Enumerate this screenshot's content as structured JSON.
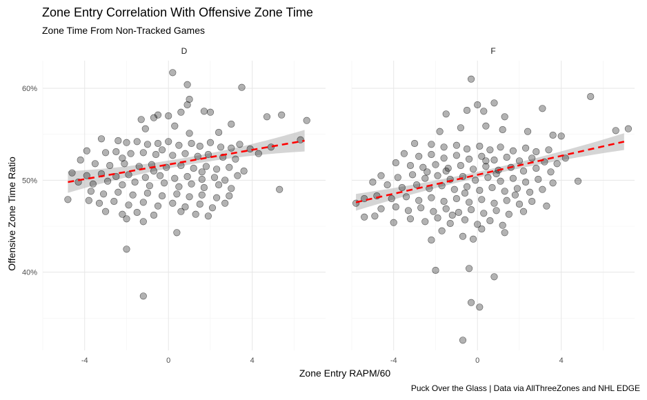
{
  "header": {
    "title": "Zone Entry Correlation With Offensive Zone Time",
    "subtitle": "Zone Time From Non-Tracked Games"
  },
  "footer": {
    "caption": "Puck Over the Glass   |   Data via AllThreeZones and NHL EDGE"
  },
  "chart_data": {
    "type": "scatter",
    "xlabel": "Zone Entry RAPM/60",
    "ylabel": "Offensive Zone Time Ratio",
    "xlim": [
      -6.0,
      7.5
    ],
    "ylim": [
      31.5,
      63.0
    ],
    "x_ticks": [
      -4,
      0,
      4
    ],
    "x_tick_labels": [
      "-4",
      "0",
      "4"
    ],
    "y_ticks": [
      40,
      50,
      60
    ],
    "y_tick_labels": [
      "40%",
      "50%",
      "60%"
    ],
    "grid": true,
    "point_color": "#000000",
    "point_alpha": 0.3,
    "trend_color": "#ff0000",
    "band_color": "#bebebe",
    "panels": [
      {
        "label": "D",
        "trend": {
          "x": [
            -4.8,
            6.5
          ],
          "y": [
            49.8,
            54.3
          ],
          "band": 0.9
        },
        "points": [
          [
            0.2,
            61.7
          ],
          [
            0.9,
            60.4
          ],
          [
            3.5,
            60.1
          ],
          [
            1.0,
            58.8
          ],
          [
            0.9,
            58.2
          ],
          [
            4.7,
            56.9
          ],
          [
            5.4,
            57.1
          ],
          [
            6.6,
            56.5
          ],
          [
            1.7,
            57.5
          ],
          [
            2.0,
            57.4
          ],
          [
            0.6,
            57.4
          ],
          [
            -0.5,
            57.1
          ],
          [
            -1.3,
            56.6
          ],
          [
            -0.7,
            56.8
          ],
          [
            0.0,
            57.0
          ],
          [
            3.0,
            56.1
          ],
          [
            -3.2,
            54.5
          ],
          [
            -2.4,
            54.3
          ],
          [
            -2.0,
            54.1
          ],
          [
            -1.5,
            54.2
          ],
          [
            -1.0,
            53.9
          ],
          [
            -0.5,
            54.0
          ],
          [
            0.0,
            54.2
          ],
          [
            0.5,
            53.8
          ],
          [
            1.1,
            54.0
          ],
          [
            1.5,
            53.7
          ],
          [
            2.0,
            54.1
          ],
          [
            2.5,
            53.6
          ],
          [
            3.0,
            53.5
          ],
          [
            3.4,
            53.9
          ],
          [
            3.9,
            53.4
          ],
          [
            -3.9,
            53.2
          ],
          [
            -3.0,
            53.0
          ],
          [
            -2.5,
            53.1
          ],
          [
            -1.8,
            52.9
          ],
          [
            -1.2,
            53.0
          ],
          [
            -0.6,
            52.8
          ],
          [
            0.2,
            52.7
          ],
          [
            0.8,
            52.9
          ],
          [
            1.4,
            52.6
          ],
          [
            1.9,
            52.8
          ],
          [
            2.6,
            52.5
          ],
          [
            3.2,
            52.3
          ],
          [
            4.3,
            52.9
          ],
          [
            4.9,
            53.6
          ],
          [
            6.3,
            54.4
          ],
          [
            -4.2,
            52.2
          ],
          [
            -3.5,
            51.8
          ],
          [
            -2.8,
            51.6
          ],
          [
            -2.1,
            51.8
          ],
          [
            -1.4,
            51.5
          ],
          [
            -0.8,
            51.7
          ],
          [
            -0.1,
            51.4
          ],
          [
            0.6,
            51.6
          ],
          [
            1.2,
            51.3
          ],
          [
            1.8,
            51.5
          ],
          [
            2.3,
            51.2
          ],
          [
            2.9,
            51.4
          ],
          [
            3.6,
            51.0
          ],
          [
            -4.6,
            50.8
          ],
          [
            -3.9,
            50.5
          ],
          [
            -3.2,
            50.7
          ],
          [
            -2.5,
            50.4
          ],
          [
            -1.9,
            50.6
          ],
          [
            -1.1,
            50.3
          ],
          [
            -0.4,
            50.5
          ],
          [
            0.3,
            50.2
          ],
          [
            0.9,
            50.4
          ],
          [
            1.6,
            50.1
          ],
          [
            2.2,
            50.3
          ],
          [
            2.7,
            50.0
          ],
          [
            3.3,
            50.5
          ],
          [
            -4.3,
            49.8
          ],
          [
            -3.6,
            49.6
          ],
          [
            -2.9,
            49.9
          ],
          [
            -2.2,
            49.5
          ],
          [
            -1.6,
            49.8
          ],
          [
            -0.9,
            49.4
          ],
          [
            -0.2,
            49.7
          ],
          [
            0.5,
            49.3
          ],
          [
            1.1,
            49.6
          ],
          [
            1.7,
            49.2
          ],
          [
            2.4,
            49.5
          ],
          [
            3.0,
            49.1
          ],
          [
            -3.7,
            48.8
          ],
          [
            -3.1,
            48.5
          ],
          [
            -2.4,
            48.7
          ],
          [
            -1.7,
            48.4
          ],
          [
            -1.0,
            48.6
          ],
          [
            -0.3,
            48.3
          ],
          [
            0.4,
            48.5
          ],
          [
            1.0,
            48.2
          ],
          [
            1.6,
            48.4
          ],
          [
            2.3,
            48.1
          ],
          [
            2.9,
            48.3
          ],
          [
            -4.8,
            47.9
          ],
          [
            -3.8,
            47.8
          ],
          [
            -3.3,
            47.5
          ],
          [
            -2.6,
            47.7
          ],
          [
            -1.9,
            47.3
          ],
          [
            -1.2,
            47.6
          ],
          [
            -0.5,
            47.2
          ],
          [
            0.2,
            47.5
          ],
          [
            0.8,
            47.1
          ],
          [
            1.5,
            47.4
          ],
          [
            2.1,
            47.0
          ],
          [
            2.7,
            47.5
          ],
          [
            -3.0,
            46.6
          ],
          [
            -2.2,
            46.3
          ],
          [
            -1.5,
            46.5
          ],
          [
            -0.7,
            46.2
          ],
          [
            0.6,
            46.6
          ],
          [
            1.3,
            46.3
          ],
          [
            1.9,
            46.1
          ],
          [
            5.3,
            49.0
          ],
          [
            -2.0,
            45.8
          ],
          [
            -1.2,
            45.5
          ],
          [
            0.4,
            44.3
          ],
          [
            -2.0,
            42.5
          ],
          [
            -1.2,
            37.4
          ],
          [
            -2.2,
            52.4
          ],
          [
            -0.3,
            53.3
          ],
          [
            1.0,
            55.1
          ],
          [
            -1.1,
            55.6
          ],
          [
            0.3,
            55.9
          ],
          [
            2.4,
            55.2
          ],
          [
            1.6,
            50.9
          ],
          [
            -0.7,
            51.0
          ]
        ]
      },
      {
        "label": "F",
        "trend": {
          "x": [
            -5.8,
            7.0
          ],
          "y": [
            47.6,
            54.2
          ],
          "band": 0.7
        },
        "points": [
          [
            -0.3,
            61.0
          ],
          [
            5.4,
            59.1
          ],
          [
            0.0,
            58.2
          ],
          [
            0.8,
            58.4
          ],
          [
            -1.5,
            57.2
          ],
          [
            -0.5,
            57.6
          ],
          [
            0.3,
            57.5
          ],
          [
            1.3,
            56.9
          ],
          [
            3.1,
            57.8
          ],
          [
            6.6,
            55.4
          ],
          [
            7.2,
            55.6
          ],
          [
            -1.8,
            55.3
          ],
          [
            -0.8,
            55.7
          ],
          [
            0.4,
            55.9
          ],
          [
            1.2,
            55.5
          ],
          [
            2.4,
            55.3
          ],
          [
            3.6,
            54.9
          ],
          [
            4.0,
            54.8
          ],
          [
            -3.0,
            54.0
          ],
          [
            -2.2,
            53.9
          ],
          [
            -1.6,
            53.6
          ],
          [
            -1.0,
            53.8
          ],
          [
            -0.5,
            53.4
          ],
          [
            0.1,
            53.7
          ],
          [
            0.6,
            53.3
          ],
          [
            1.1,
            53.6
          ],
          [
            1.7,
            53.2
          ],
          [
            2.3,
            53.5
          ],
          [
            2.8,
            53.1
          ],
          [
            3.4,
            53.3
          ],
          [
            4.2,
            52.4
          ],
          [
            -3.5,
            52.9
          ],
          [
            -2.8,
            52.6
          ],
          [
            -2.2,
            52.8
          ],
          [
            -1.6,
            52.4
          ],
          [
            -1.0,
            52.7
          ],
          [
            -0.4,
            52.3
          ],
          [
            0.2,
            52.6
          ],
          [
            0.8,
            52.2
          ],
          [
            1.4,
            52.5
          ],
          [
            2.0,
            52.1
          ],
          [
            2.6,
            52.4
          ],
          [
            3.2,
            52.0
          ],
          [
            3.8,
            51.8
          ],
          [
            -3.9,
            51.9
          ],
          [
            -3.2,
            51.6
          ],
          [
            -2.6,
            51.4
          ],
          [
            -2.0,
            51.7
          ],
          [
            -1.4,
            51.3
          ],
          [
            -0.8,
            51.6
          ],
          [
            -0.2,
            51.2
          ],
          [
            0.4,
            51.5
          ],
          [
            1.0,
            51.1
          ],
          [
            1.6,
            51.4
          ],
          [
            2.2,
            51.0
          ],
          [
            2.8,
            51.3
          ],
          [
            3.5,
            50.9
          ],
          [
            -4.6,
            50.5
          ],
          [
            -3.8,
            50.3
          ],
          [
            -3.1,
            50.6
          ],
          [
            -2.5,
            50.2
          ],
          [
            -1.9,
            50.5
          ],
          [
            -1.3,
            50.1
          ],
          [
            -0.7,
            50.4
          ],
          [
            -0.1,
            50.0
          ],
          [
            0.5,
            50.3
          ],
          [
            1.1,
            49.9
          ],
          [
            1.7,
            50.2
          ],
          [
            2.3,
            49.8
          ],
          [
            2.9,
            50.1
          ],
          [
            3.6,
            49.7
          ],
          [
            4.8,
            49.9
          ],
          [
            -5.0,
            49.8
          ],
          [
            -4.3,
            49.5
          ],
          [
            -3.6,
            49.2
          ],
          [
            -2.9,
            49.5
          ],
          [
            -2.3,
            49.1
          ],
          [
            -1.7,
            49.4
          ],
          [
            -1.1,
            49.0
          ],
          [
            -0.5,
            49.3
          ],
          [
            0.1,
            48.9
          ],
          [
            0.7,
            49.2
          ],
          [
            1.3,
            48.8
          ],
          [
            1.9,
            49.1
          ],
          [
            2.5,
            48.7
          ],
          [
            3.1,
            49.0
          ],
          [
            -5.4,
            48.0
          ],
          [
            -4.8,
            48.3
          ],
          [
            -4.1,
            48.0
          ],
          [
            -3.4,
            48.2
          ],
          [
            -2.8,
            47.8
          ],
          [
            -2.2,
            48.1
          ],
          [
            -1.6,
            47.7
          ],
          [
            -1.0,
            48.0
          ],
          [
            -0.4,
            47.6
          ],
          [
            0.2,
            47.9
          ],
          [
            0.8,
            47.5
          ],
          [
            1.4,
            47.8
          ],
          [
            2.0,
            47.4
          ],
          [
            2.6,
            47.7
          ],
          [
            3.3,
            47.2
          ],
          [
            -5.8,
            47.5
          ],
          [
            -4.6,
            46.9
          ],
          [
            -3.9,
            47.1
          ],
          [
            -3.3,
            46.7
          ],
          [
            -2.7,
            47.0
          ],
          [
            -2.1,
            46.6
          ],
          [
            -1.5,
            46.9
          ],
          [
            -0.9,
            46.5
          ],
          [
            -0.3,
            46.8
          ],
          [
            0.3,
            46.4
          ],
          [
            0.9,
            46.7
          ],
          [
            1.5,
            46.3
          ],
          [
            2.2,
            46.6
          ],
          [
            -5.4,
            46.0
          ],
          [
            -4.9,
            46.1
          ],
          [
            -4.0,
            45.4
          ],
          [
            -3.2,
            45.8
          ],
          [
            -2.5,
            45.5
          ],
          [
            -1.9,
            45.9
          ],
          [
            -1.3,
            45.3
          ],
          [
            -0.6,
            45.7
          ],
          [
            0.0,
            45.2
          ],
          [
            0.6,
            45.6
          ],
          [
            1.2,
            45.1
          ],
          [
            -1.7,
            44.5
          ],
          [
            -0.7,
            43.9
          ],
          [
            -0.2,
            43.6
          ],
          [
            0.2,
            44.7
          ],
          [
            1.3,
            44.3
          ],
          [
            -2.2,
            43.5
          ],
          [
            -2.0,
            40.2
          ],
          [
            -0.4,
            40.4
          ],
          [
            0.8,
            39.5
          ],
          [
            -0.3,
            36.7
          ],
          [
            0.1,
            36.2
          ],
          [
            -0.7,
            32.6
          ],
          [
            -1.5,
            51.0
          ],
          [
            0.9,
            50.7
          ],
          [
            -0.6,
            48.6
          ],
          [
            1.8,
            48.4
          ],
          [
            -2.4,
            50.9
          ],
          [
            0.4,
            52.1
          ],
          [
            -1.2,
            46.2
          ]
        ]
      }
    ]
  }
}
